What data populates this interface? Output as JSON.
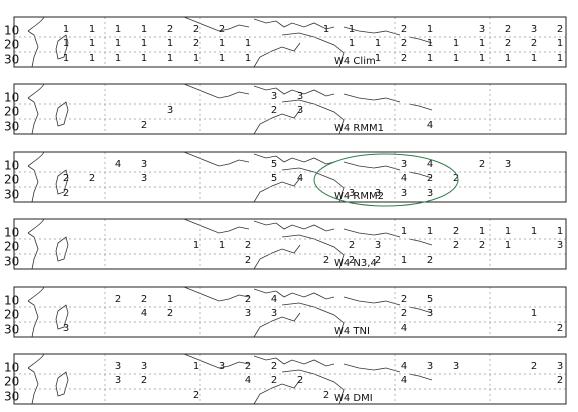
{
  "panels": [
    {
      "label": "W4 Clim",
      "y_labels": [
        "10",
        "20",
        "30"
      ],
      "rows": [
        [
          1,
          1,
          1,
          1,
          2,
          2,
          2,
          null,
          null,
          null,
          1,
          1,
          null,
          2,
          1,
          null,
          3,
          2,
          3,
          2
        ],
        [
          1,
          1,
          1,
          1,
          1,
          2,
          1,
          1,
          null,
          null,
          null,
          1,
          1,
          2,
          1,
          1,
          1,
          2,
          2,
          1
        ],
        [
          1,
          1,
          1,
          1,
          1,
          1,
          1,
          1,
          null,
          null,
          null,
          null,
          1,
          2,
          1,
          1,
          1,
          1,
          1,
          1
        ]
      ]
    },
    {
      "label": "W4 RMM1",
      "y_labels": [
        "10",
        "20",
        "30"
      ],
      "rows": [
        [
          null,
          null,
          null,
          null,
          null,
          null,
          null,
          null,
          3,
          3,
          null,
          null,
          null,
          null,
          null,
          null,
          null,
          null,
          null,
          null
        ],
        [
          null,
          null,
          null,
          null,
          3,
          null,
          null,
          null,
          2,
          3,
          null,
          null,
          null,
          null,
          null,
          null,
          null,
          null,
          null,
          null
        ],
        [
          null,
          null,
          null,
          2,
          null,
          null,
          null,
          null,
          null,
          null,
          null,
          null,
          null,
          null,
          4,
          null,
          null,
          null,
          null,
          null
        ]
      ]
    },
    {
      "label": "W4 RMM2",
      "y_labels": [
        "10",
        "20",
        "30"
      ],
      "rows": [
        [
          null,
          null,
          4,
          3,
          null,
          null,
          null,
          null,
          5,
          null,
          null,
          null,
          null,
          3,
          4,
          null,
          2,
          3,
          null,
          null
        ],
        [
          2,
          2,
          null,
          3,
          null,
          null,
          null,
          null,
          5,
          4,
          null,
          null,
          null,
          4,
          2,
          2,
          null,
          null,
          null,
          null
        ],
        [
          2,
          null,
          null,
          null,
          null,
          null,
          null,
          null,
          null,
          null,
          null,
          3,
          3,
          3,
          3,
          null,
          null,
          null,
          null,
          null
        ]
      ]
    },
    {
      "label": "W4 N3,4",
      "y_labels": [
        "10",
        "20",
        "30"
      ],
      "rows": [
        [
          null,
          null,
          null,
          null,
          null,
          null,
          null,
          null,
          null,
          null,
          null,
          null,
          null,
          1,
          1,
          2,
          1,
          1,
          1,
          1
        ],
        [
          null,
          null,
          null,
          null,
          null,
          1,
          1,
          2,
          null,
          null,
          null,
          2,
          3,
          null,
          null,
          2,
          2,
          1,
          null,
          3
        ],
        [
          null,
          null,
          null,
          null,
          null,
          null,
          null,
          2,
          null,
          null,
          2,
          2,
          2,
          1,
          2,
          null,
          null,
          null,
          null,
          null
        ]
      ]
    },
    {
      "label": "W4 TNI",
      "y_labels": [
        "10",
        "20",
        "30"
      ],
      "rows": [
        [
          null,
          null,
          2,
          2,
          1,
          null,
          null,
          2,
          4,
          null,
          null,
          null,
          null,
          2,
          5,
          null,
          null,
          null,
          null,
          null
        ],
        [
          null,
          null,
          null,
          4,
          2,
          null,
          null,
          3,
          3,
          null,
          null,
          null,
          null,
          2,
          3,
          null,
          null,
          null,
          1,
          null
        ],
        [
          3,
          null,
          null,
          null,
          null,
          null,
          null,
          null,
          null,
          null,
          null,
          null,
          null,
          4,
          null,
          null,
          null,
          null,
          null,
          2
        ]
      ]
    },
    {
      "label": "W4 DMI",
      "y_labels": [
        "10",
        "20",
        "30"
      ],
      "rows": [
        [
          null,
          null,
          3,
          3,
          null,
          1,
          3,
          2,
          2,
          null,
          null,
          null,
          null,
          4,
          3,
          3,
          null,
          null,
          2,
          3
        ],
        [
          null,
          null,
          3,
          2,
          null,
          null,
          null,
          4,
          2,
          2,
          null,
          null,
          null,
          4,
          null,
          null,
          null,
          null,
          null,
          2
        ],
        [
          null,
          null,
          null,
          null,
          null,
          2,
          null,
          null,
          null,
          null,
          2,
          null,
          null,
          null,
          null,
          null,
          null,
          null,
          null,
          null
        ]
      ]
    }
  ]
}
